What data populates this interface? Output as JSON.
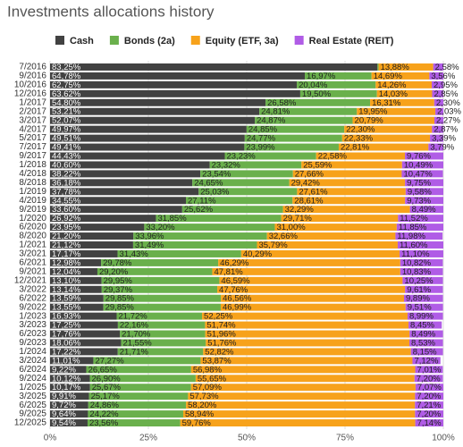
{
  "chart_data": {
    "type": "stacked_barh",
    "title": "Investments allocations history",
    "categories": [
      "7/2016",
      "9/2016",
      "10/2016",
      "12/2016",
      "1/2017",
      "2/2017",
      "3/2017",
      "4/2017",
      "5/2017",
      "7/2017",
      "9/2017",
      "1/2018",
      "4/2018",
      "8/2018",
      "1/2019",
      "4/2019",
      "9/2019",
      "1/2020",
      "6/2020",
      "8/2020",
      "1/2021",
      "3/2021",
      "6/2021",
      "9/2021",
      "12/2021",
      "3/2022",
      "6/2022",
      "9/2022",
      "1/2023",
      "3/2023",
      "6/2023",
      "9/2023",
      "1/2024",
      "3/2024",
      "6/2024",
      "9/2024",
      "1/2025",
      "3/2025",
      "6/2025",
      "9/2025",
      "12/2025"
    ],
    "series": [
      {
        "name": "Cash",
        "color": "#424242",
        "values": [
          83.25,
          64.78,
          62.75,
          63.62,
          54.8,
          53.21,
          52.07,
          49.97,
          49.51,
          49.41,
          44.43,
          40.6,
          38.22,
          36.18,
          37.78,
          34.55,
          33.6,
          26.92,
          23.95,
          21.2,
          21.12,
          17.17,
          12.98,
          12.04,
          13.1,
          13.14,
          13.59,
          13.55,
          16.93,
          17.25,
          17.76,
          18.06,
          17.22,
          11.01,
          9.22,
          10.12,
          10.17,
          9.91,
          9.72,
          9.64,
          9.54
        ],
        "value_labels": [
          "83,25%",
          "64,78%",
          "62,75%",
          "63,62%",
          "54,80%",
          "53,21%",
          "52,07%",
          "49,97%",
          "49,51%",
          "49,41%",
          "44,43%",
          "40,60%",
          "38,22%",
          "36,18%",
          "37,78%",
          "34,55%",
          "33,60%",
          "26,92%",
          "23,95%",
          "21,20%",
          "21,12%",
          "17,17%",
          "12,98%",
          "12,04%",
          "13,10%",
          "13,14%",
          "13,59%",
          "13,55%",
          "16,93%",
          "17,25%",
          "17,76%",
          "18,06%",
          "17,22%",
          "11,01%",
          "9,22%",
          "10,12%",
          "10,17%",
          "9,91%",
          "9,72%",
          "9,64%",
          "9,54%"
        ]
      },
      {
        "name": "Bonds (2a)",
        "color": "#6ab04c",
        "values": [
          0.29,
          16.97,
          20.04,
          19.5,
          26.58,
          24.81,
          24.87,
          24.85,
          24.77,
          23.99,
          23.23,
          23.32,
          23.54,
          24.65,
          25.03,
          27.11,
          25.62,
          31.85,
          33.2,
          33.96,
          31.49,
          31.43,
          29.78,
          29.2,
          29.95,
          29.37,
          29.85,
          29.85,
          21.72,
          22.16,
          21.7,
          21.55,
          21.71,
          27.27,
          26.65,
          26.9,
          25.67,
          25.17,
          24.86,
          24.22,
          23.56
        ],
        "value_labels": [
          null,
          "16,97%",
          "20,04%",
          "19,50%",
          "26,58%",
          "24,81%",
          "24,87%",
          "24,85%",
          "24,77%",
          "23,99%",
          "23,23%",
          "23,32%",
          "23,54%",
          "24,65%",
          "25,03%",
          "27,11%",
          "25,62%",
          "31,85%",
          "33,20%",
          "33,96%",
          "31,49%",
          "31,43%",
          "29,78%",
          "29,20%",
          "29,95%",
          "29,37%",
          "29,85%",
          "29,85%",
          "21,72%",
          "22,16%",
          "21,70%",
          "21,55%",
          "21,71%",
          "27,27%",
          "26,65%",
          "26,90%",
          "25,67%",
          "25,17%",
          "24,86%",
          "24,22%",
          "23,56%"
        ]
      },
      {
        "name": "Equity (ETF, 3a)",
        "color": "#f7a21b",
        "values": [
          13.88,
          14.69,
          14.26,
          14.03,
          16.31,
          19.95,
          20.79,
          22.3,
          22.33,
          22.81,
          22.58,
          25.59,
          27.66,
          29.42,
          27.61,
          28.61,
          32.29,
          29.71,
          31.0,
          32.66,
          35.79,
          40.29,
          46.29,
          47.81,
          46.59,
          47.76,
          46.56,
          46.99,
          52.25,
          51.74,
          51.96,
          51.76,
          52.82,
          53.87,
          56.98,
          55.65,
          57.09,
          57.73,
          58.2,
          58.94,
          59.76
        ],
        "value_labels": [
          "13,88%",
          "14,69%",
          "14,26%",
          "14,03%",
          "16,31%",
          "19,95%",
          "20,79%",
          "22,30%",
          "22,33%",
          "22,81%",
          "22,58%",
          "25,59%",
          "27,66%",
          "29,42%",
          "27,61%",
          "28,61%",
          "32,29%",
          "29,71%",
          "31,00%",
          "32,66%",
          "35,79%",
          "40,29%",
          "46,29%",
          "47,81%",
          "46,59%",
          "47,76%",
          "46,56%",
          "46,99%",
          "52,25%",
          "51,74%",
          "51,96%",
          "51,76%",
          "52,82%",
          "53,87%",
          "56,98%",
          "55,65%",
          "57,09%",
          "57,73%",
          "58,20%",
          "58,94%",
          "59,76%"
        ]
      },
      {
        "name": "Real Estate (REIT)",
        "color": "#b05ce6",
        "values": [
          2.58,
          3.56,
          2.95,
          2.85,
          2.3,
          2.03,
          2.27,
          2.87,
          3.39,
          3.79,
          9.76,
          10.49,
          10.47,
          9.75,
          9.58,
          9.73,
          8.49,
          11.52,
          11.85,
          11.98,
          11.6,
          11.1,
          10.82,
          10.83,
          10.25,
          9.61,
          9.89,
          9.51,
          8.99,
          8.45,
          8.49,
          8.53,
          8.15,
          7.12,
          7.01,
          7.2,
          7.07,
          7.2,
          7.21,
          7.2,
          7.14
        ],
        "value_labels": [
          "2,58%",
          "3,56%",
          "2,95%",
          "2,85%",
          "2,30%",
          "2,03%",
          "2,27%",
          "2,87%",
          "3,39%",
          "3,79%",
          "9,76%",
          "10,49%",
          "10,47%",
          "9,75%",
          "9,58%",
          "9,73%",
          "8,49%",
          "11,52%",
          "11,85%",
          "11,98%",
          "11,60%",
          "11,10%",
          "10,82%",
          "10,83%",
          "10,25%",
          "9,61%",
          "9,89%",
          "9,51%",
          "8,99%",
          "8,45%",
          "8,49%",
          "8,53%",
          "8,15%",
          "7,12%",
          "7,01%",
          "7,20%",
          "7,07%",
          "7,20%",
          "7,21%",
          "7,20%",
          "7,14%"
        ]
      }
    ],
    "xlim": [
      0,
      100
    ],
    "xticks": [
      {
        "value": 0,
        "label": "0%"
      },
      {
        "value": 25,
        "label": "25%"
      },
      {
        "value": 50,
        "label": "50%"
      },
      {
        "value": 75,
        "label": "75%"
      },
      {
        "value": 100,
        "label": "100%"
      }
    ],
    "grid": true,
    "legend": "top"
  }
}
